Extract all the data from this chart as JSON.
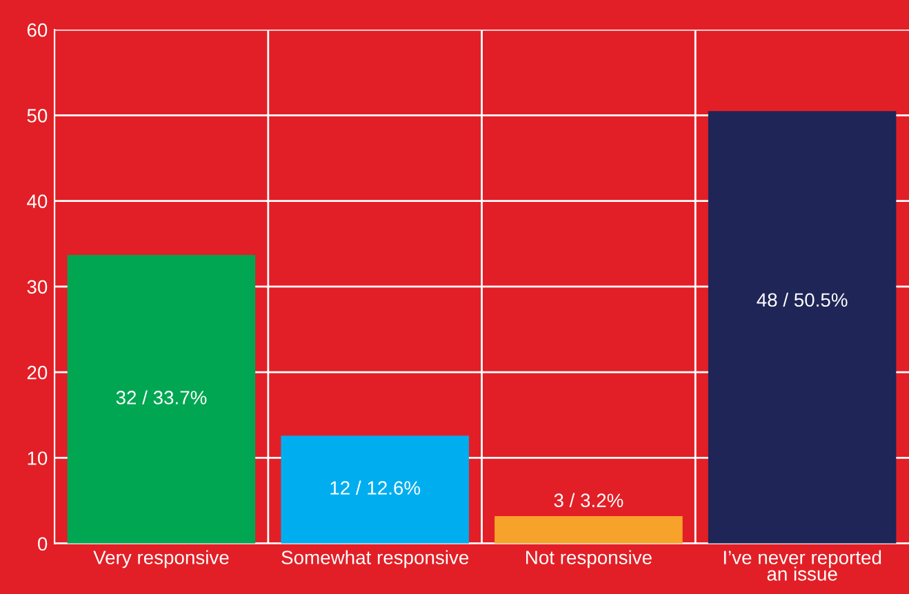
{
  "chart_data": {
    "type": "bar",
    "categories": [
      "Very responsive",
      "Somewhat responsive",
      "Not responsive",
      "I’ve never reported\nan issue"
    ],
    "values": [
      33.7,
      12.6,
      3.2,
      50.5
    ],
    "value_labels": [
      "32 / 33.7%",
      "12 / 12.6%",
      "3 / 3.2%",
      "48 / 50.5%"
    ],
    "colors": [
      "#00a651",
      "#00aeef",
      "#f7a32b",
      "#1f2556"
    ],
    "ylim": [
      0,
      60
    ],
    "yticks": [
      0,
      10,
      20,
      30,
      40,
      50,
      60
    ],
    "grid": true
  }
}
